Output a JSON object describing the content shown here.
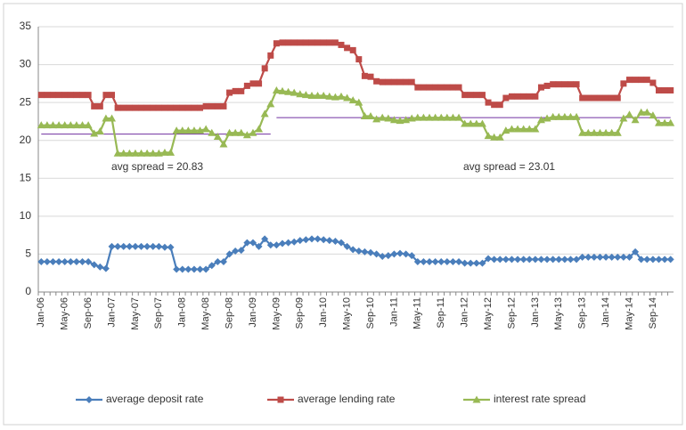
{
  "chart_data": {
    "type": "line",
    "categories": [
      "Jan-06",
      null,
      null,
      null,
      "May-06",
      null,
      null,
      null,
      "Sep-06",
      null,
      null,
      null,
      "Jan-07",
      null,
      null,
      null,
      "May-07",
      null,
      null,
      null,
      "Sep-07",
      null,
      null,
      null,
      "Jan-08",
      null,
      null,
      null,
      "May-08",
      null,
      null,
      null,
      "Sep-08",
      null,
      null,
      null,
      "Jan-09",
      null,
      null,
      null,
      "May-09",
      null,
      null,
      null,
      "Sep-09",
      null,
      null,
      null,
      "Jan-10",
      null,
      null,
      null,
      "May-10",
      null,
      null,
      null,
      "Sep-10",
      null,
      null,
      null,
      "Jan-11",
      null,
      null,
      null,
      "May-11",
      null,
      null,
      null,
      "Sep-11",
      null,
      null,
      null,
      "Jan-12",
      null,
      null,
      null,
      "May-12",
      null,
      null,
      null,
      "Sep-12",
      null,
      null,
      null,
      "Jan-13",
      null,
      null,
      null,
      "May-13",
      null,
      null,
      null,
      "Sep-13",
      null,
      null,
      null,
      "Jan-14",
      null,
      null,
      null,
      "May-14",
      null,
      null,
      null,
      "Sep-14",
      null,
      null,
      null
    ],
    "series": [
      {
        "name": "average deposit rate",
        "color": "#4a7ebb",
        "marker": "diamond",
        "values": [
          4.0,
          4.0,
          4.0,
          4.0,
          4.0,
          4.0,
          4.0,
          4.0,
          4.0,
          3.6,
          3.3,
          3.1,
          6.0,
          6.0,
          6.0,
          6.0,
          6.0,
          6.0,
          6.0,
          6.0,
          6.0,
          5.9,
          5.9,
          3.0,
          3.0,
          3.0,
          3.0,
          3.0,
          3.0,
          3.5,
          4.0,
          4.0,
          5.0,
          5.4,
          5.5,
          6.5,
          6.5,
          6.0,
          7.0,
          6.2,
          6.2,
          6.4,
          6.5,
          6.6,
          6.8,
          6.9,
          7.0,
          7.0,
          6.9,
          6.8,
          6.7,
          6.5,
          6.0,
          5.6,
          5.4,
          5.3,
          5.2,
          5.0,
          4.7,
          4.8,
          5.0,
          5.1,
          5.0,
          4.8,
          4.0,
          4.0,
          4.0,
          4.0,
          4.0,
          4.0,
          4.0,
          4.0,
          3.8,
          3.8,
          3.8,
          3.8,
          4.4,
          4.3,
          4.3,
          4.3,
          4.3,
          4.3,
          4.3,
          4.3,
          4.3,
          4.3,
          4.3,
          4.3,
          4.3,
          4.3,
          4.3,
          4.3,
          4.6,
          4.6,
          4.6,
          4.6,
          4.6,
          4.6,
          4.6,
          4.6,
          4.6,
          5.3,
          4.3,
          4.3,
          4.3,
          4.3,
          4.3,
          4.3
        ]
      },
      {
        "name": "average lending rate",
        "color": "#be4b48",
        "marker": "square",
        "values": [
          26.0,
          26.0,
          26.0,
          26.0,
          26.0,
          26.0,
          26.0,
          26.0,
          26.0,
          24.5,
          24.5,
          26.0,
          26.0,
          24.3,
          24.3,
          24.3,
          24.3,
          24.3,
          24.3,
          24.3,
          24.3,
          24.3,
          24.3,
          24.3,
          24.3,
          24.3,
          24.3,
          24.3,
          24.5,
          24.5,
          24.5,
          24.5,
          26.3,
          26.5,
          26.5,
          27.2,
          27.5,
          27.5,
          29.5,
          31.2,
          32.8,
          32.9,
          32.9,
          32.9,
          32.9,
          32.9,
          32.9,
          32.9,
          32.9,
          32.9,
          32.9,
          32.6,
          32.2,
          31.9,
          30.7,
          28.5,
          28.4,
          27.8,
          27.7,
          27.7,
          27.7,
          27.7,
          27.7,
          27.7,
          27.0,
          27.0,
          27.0,
          27.0,
          27.0,
          27.0,
          27.0,
          27.0,
          26.0,
          26.0,
          26.0,
          26.0,
          25.0,
          24.7,
          24.7,
          25.6,
          25.8,
          25.8,
          25.8,
          25.8,
          25.8,
          27.0,
          27.2,
          27.4,
          27.4,
          27.4,
          27.4,
          27.4,
          25.6,
          25.6,
          25.6,
          25.6,
          25.6,
          25.6,
          25.6,
          27.5,
          28.0,
          28.0,
          28.0,
          28.0,
          27.6,
          26.6,
          26.6,
          26.6
        ]
      },
      {
        "name": "interest rate spread",
        "color": "#98b954",
        "marker": "triangle",
        "values": [
          22.0,
          22.0,
          22.0,
          22.0,
          22.0,
          22.0,
          22.0,
          22.0,
          22.0,
          20.9,
          21.2,
          22.9,
          22.9,
          18.3,
          18.3,
          18.3,
          18.3,
          18.3,
          18.3,
          18.3,
          18.3,
          18.4,
          18.4,
          21.3,
          21.3,
          21.3,
          21.3,
          21.3,
          21.5,
          21.0,
          20.5,
          19.5,
          21.0,
          21.0,
          21.0,
          20.7,
          21.0,
          21.5,
          23.5,
          24.8,
          26.6,
          26.5,
          26.4,
          26.3,
          26.1,
          26.0,
          25.9,
          25.9,
          25.9,
          25.8,
          25.7,
          25.8,
          25.6,
          25.3,
          25.0,
          23.2,
          23.2,
          22.8,
          23.0,
          22.9,
          22.7,
          22.6,
          22.7,
          22.9,
          23.0,
          23.0,
          23.0,
          23.0,
          23.0,
          23.0,
          23.0,
          23.0,
          22.2,
          22.2,
          22.2,
          22.2,
          20.6,
          20.4,
          20.4,
          21.3,
          21.5,
          21.5,
          21.5,
          21.5,
          21.5,
          22.7,
          22.9,
          23.1,
          23.1,
          23.1,
          23.1,
          23.1,
          21.0,
          21.0,
          21.0,
          21.0,
          21.0,
          21.0,
          21.0,
          22.9,
          23.4,
          22.7,
          23.7,
          23.7,
          23.3,
          22.3,
          22.3,
          22.3
        ]
      }
    ],
    "reference_lines": [
      {
        "value": 20.83,
        "label": "avg spread = 20.83",
        "color": "#7030a0",
        "x_range": [
          "Jan-06",
          "May-09"
        ]
      },
      {
        "value": 23.01,
        "label": "avg spread = 23.01",
        "color": "#7030a0",
        "x_range": [
          "May-09",
          "Sep-14"
        ]
      }
    ],
    "ylim": [
      0,
      35
    ],
    "yticks": [
      0,
      5,
      10,
      15,
      20,
      25,
      30,
      35
    ],
    "grid": true,
    "legend": "bottom"
  }
}
